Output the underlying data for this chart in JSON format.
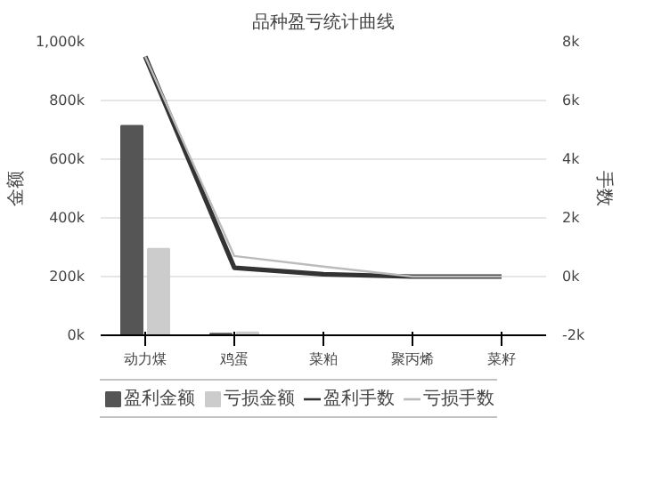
{
  "chart_data": {
    "type": "bar",
    "title": "品种盈亏统计曲线",
    "ylabel": "金额",
    "y2label": "手数",
    "categories": [
      "动力煤",
      "鸡蛋",
      "菜粕",
      "聚丙烯",
      "菜籽"
    ],
    "series": [
      {
        "name": "盈利金额",
        "color": "#555555",
        "values": [
          714000,
          5000,
          0,
          0,
          0
        ]
      },
      {
        "name": "亏损金额",
        "color": "#cccccc",
        "values": [
          295000,
          10000,
          0,
          0,
          0
        ]
      },
      {
        "name": "盈利手数",
        "type": "line",
        "axis": "y2",
        "color": "#333333",
        "values": [
          7500,
          300,
          80,
          0,
          0
        ]
      },
      {
        "name": "亏损手数",
        "type": "line",
        "axis": "y2",
        "color": "#bbbbbb",
        "values": [
          7500,
          700,
          340,
          0,
          0
        ]
      }
    ],
    "ylim": [
      0,
      1000000
    ],
    "yticks": [
      {
        "value": 0,
        "label": "0k"
      },
      {
        "value": 200000,
        "label": "200k"
      },
      {
        "value": 400000,
        "label": "400k"
      },
      {
        "value": 600000,
        "label": "600k"
      },
      {
        "value": 800000,
        "label": "800k"
      },
      {
        "value": 1000000,
        "label": "1,000k"
      }
    ],
    "y2lim": [
      -2000,
      8000
    ],
    "y2ticks": [
      {
        "value": -2000,
        "label": "-2k"
      },
      {
        "value": 0,
        "label": "0k"
      },
      {
        "value": 2000,
        "label": "2k"
      },
      {
        "value": 4000,
        "label": "4k"
      },
      {
        "value": 6000,
        "label": "6k"
      },
      {
        "value": 8000,
        "label": "8k"
      }
    ],
    "grid": "y",
    "legend": "bottom",
    "line_style": "solid",
    "marker": "none"
  }
}
